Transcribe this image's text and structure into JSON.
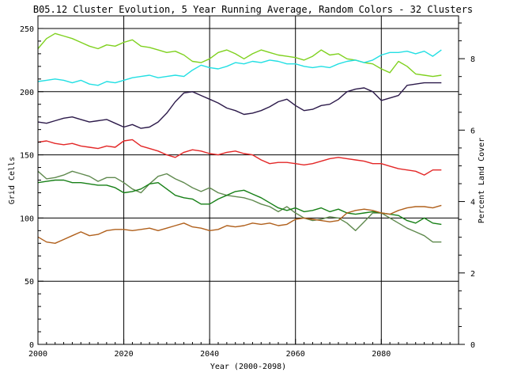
{
  "chart_data": {
    "type": "line",
    "title": "B05.12 Cluster Evolution, 5 Year Running Average, Random Colors - 32 Clusters",
    "xlabel": "Year (2000-2098)",
    "ylabel": "Grid Cells",
    "y2label": "Percent Land Cover",
    "xlim": [
      2000,
      2098
    ],
    "ylim": [
      0,
      260
    ],
    "y2lim": [
      0,
      9.2
    ],
    "xticks": [
      2000,
      2020,
      2040,
      2060,
      2080
    ],
    "xtick_labels": [
      "2000",
      "2020",
      "2040",
      "2060",
      "2080"
    ],
    "yticks": [
      0,
      50,
      100,
      150,
      200,
      250
    ],
    "ytick_labels": [
      "0",
      "50",
      "100",
      "150",
      "200",
      "250"
    ],
    "y2ticks": [
      0,
      2,
      4,
      6,
      8
    ],
    "y2tick_labels": [
      "0",
      "2",
      "4",
      "6",
      "8"
    ],
    "grid": true,
    "series": [
      {
        "color": "#7fd11f",
        "x": [
          2000,
          2002,
          2004,
          2006,
          2008,
          2010,
          2012,
          2014,
          2016,
          2018,
          2020,
          2022,
          2024,
          2026,
          2028,
          2030,
          2032,
          2034,
          2036,
          2038,
          2040,
          2042,
          2044,
          2046,
          2048,
          2050,
          2052,
          2054,
          2056,
          2058,
          2060,
          2062,
          2064,
          2066,
          2068,
          2070,
          2072,
          2074,
          2076,
          2078,
          2080,
          2082,
          2084,
          2086,
          2088,
          2090,
          2092,
          2094
        ],
        "y": [
          234,
          242,
          246,
          244,
          242,
          239,
          236,
          234,
          237,
          236,
          239,
          241,
          236,
          235,
          233,
          231,
          232,
          229,
          224,
          223,
          226,
          231,
          233,
          230,
          226,
          230,
          233,
          231,
          229,
          228,
          227,
          225,
          228,
          233,
          229,
          230,
          226,
          225,
          223,
          222,
          218,
          215,
          224,
          220,
          214,
          213,
          212,
          213
        ]
      },
      {
        "color": "#22dfe3",
        "x": [
          2000,
          2002,
          2004,
          2006,
          2008,
          2010,
          2012,
          2014,
          2016,
          2018,
          2020,
          2022,
          2024,
          2026,
          2028,
          2030,
          2032,
          2034,
          2036,
          2038,
          2040,
          2042,
          2044,
          2046,
          2048,
          2050,
          2052,
          2054,
          2056,
          2058,
          2060,
          2062,
          2064,
          2066,
          2068,
          2070,
          2072,
          2074,
          2076,
          2078,
          2080,
          2082,
          2084,
          2086,
          2088,
          2090,
          2092,
          2094
        ],
        "y": [
          208,
          209,
          210,
          209,
          207,
          209,
          206,
          205,
          208,
          207,
          209,
          211,
          212,
          213,
          211,
          212,
          213,
          212,
          217,
          221,
          219,
          218,
          220,
          223,
          222,
          224,
          223,
          225,
          224,
          222,
          222,
          220,
          219,
          220,
          219,
          222,
          224,
          225,
          223,
          225,
          229,
          231,
          231,
          232,
          230,
          232,
          228,
          233
        ]
      },
      {
        "color": "#2c1a4a",
        "x": [
          2000,
          2002,
          2004,
          2006,
          2008,
          2010,
          2012,
          2014,
          2016,
          2018,
          2020,
          2022,
          2024,
          2026,
          2028,
          2030,
          2032,
          2034,
          2036,
          2038,
          2040,
          2042,
          2044,
          2046,
          2048,
          2050,
          2052,
          2054,
          2056,
          2058,
          2060,
          2062,
          2064,
          2066,
          2068,
          2070,
          2072,
          2074,
          2076,
          2078,
          2080,
          2082,
          2084,
          2086,
          2088,
          2090,
          2092,
          2094
        ],
        "y": [
          176,
          175,
          177,
          179,
          180,
          178,
          176,
          177,
          178,
          175,
          172,
          174,
          171,
          172,
          176,
          183,
          192,
          199,
          200,
          197,
          194,
          191,
          187,
          185,
          182,
          183,
          185,
          188,
          192,
          194,
          189,
          185,
          186,
          189,
          190,
          194,
          200,
          202,
          203,
          200,
          193,
          195,
          197,
          205,
          206,
          207,
          207,
          207
        ]
      },
      {
        "color": "#e32727",
        "x": [
          2000,
          2002,
          2004,
          2006,
          2008,
          2010,
          2012,
          2014,
          2016,
          2018,
          2020,
          2022,
          2024,
          2026,
          2028,
          2030,
          2032,
          2034,
          2036,
          2038,
          2040,
          2042,
          2044,
          2046,
          2048,
          2050,
          2052,
          2054,
          2056,
          2058,
          2060,
          2062,
          2064,
          2066,
          2068,
          2070,
          2072,
          2074,
          2076,
          2078,
          2080,
          2082,
          2084,
          2086,
          2088,
          2090,
          2092,
          2094
        ],
        "y": [
          160,
          161,
          159,
          158,
          159,
          157,
          156,
          155,
          157,
          156,
          161,
          162,
          157,
          155,
          153,
          150,
          148,
          152,
          154,
          153,
          151,
          150,
          152,
          153,
          151,
          150,
          146,
          143,
          144,
          144,
          143,
          142,
          143,
          145,
          147,
          148,
          147,
          146,
          145,
          143,
          143,
          141,
          139,
          138,
          137,
          134,
          138,
          138
        ]
      },
      {
        "color": "#608a4f",
        "x": [
          2000,
          2002,
          2004,
          2006,
          2008,
          2010,
          2012,
          2014,
          2016,
          2018,
          2020,
          2022,
          2024,
          2026,
          2028,
          2030,
          2032,
          2034,
          2036,
          2038,
          2040,
          2042,
          2044,
          2046,
          2048,
          2050,
          2052,
          2054,
          2056,
          2058,
          2060,
          2062,
          2064,
          2066,
          2068,
          2070,
          2072,
          2074,
          2076,
          2078,
          2080,
          2082,
          2084,
          2086,
          2088,
          2090,
          2092,
          2094
        ],
        "y": [
          137,
          131,
          132,
          134,
          137,
          135,
          133,
          129,
          132,
          132,
          128,
          123,
          120,
          127,
          133,
          135,
          131,
          128,
          124,
          121,
          124,
          120,
          118,
          117,
          116,
          114,
          111,
          109,
          105,
          109,
          104,
          100,
          98,
          99,
          101,
          100,
          96,
          90,
          97,
          104,
          104,
          100,
          96,
          92,
          89,
          86,
          81,
          81
        ]
      },
      {
        "color": "#178017",
        "x": [
          2000,
          2002,
          2004,
          2006,
          2008,
          2010,
          2012,
          2014,
          2016,
          2018,
          2020,
          2022,
          2024,
          2026,
          2028,
          2030,
          2032,
          2034,
          2036,
          2038,
          2040,
          2042,
          2044,
          2046,
          2048,
          2050,
          2052,
          2054,
          2056,
          2058,
          2060,
          2062,
          2064,
          2066,
          2068,
          2070,
          2072,
          2074,
          2076,
          2078,
          2080,
          2082,
          2084,
          2086,
          2088,
          2090,
          2092,
          2094
        ],
        "y": [
          128,
          129,
          130,
          130,
          128,
          128,
          127,
          126,
          126,
          124,
          120,
          121,
          123,
          127,
          128,
          123,
          118,
          116,
          115,
          111,
          111,
          115,
          118,
          121,
          122,
          119,
          116,
          112,
          108,
          106,
          108,
          105,
          106,
          108,
          105,
          107,
          104,
          103,
          104,
          105,
          104,
          103,
          102,
          98,
          96,
          100,
          96,
          95
        ]
      },
      {
        "color": "#b0601c",
        "x": [
          2000,
          2002,
          2004,
          2006,
          2008,
          2010,
          2012,
          2014,
          2016,
          2018,
          2020,
          2022,
          2024,
          2026,
          2028,
          2030,
          2032,
          2034,
          2036,
          2038,
          2040,
          2042,
          2044,
          2046,
          2048,
          2050,
          2052,
          2054,
          2056,
          2058,
          2060,
          2062,
          2064,
          2066,
          2068,
          2070,
          2072,
          2074,
          2076,
          2078,
          2080,
          2082,
          2084,
          2086,
          2088,
          2090,
          2092,
          2094
        ],
        "y": [
          85,
          81,
          80,
          83,
          86,
          89,
          86,
          87,
          90,
          91,
          91,
          90,
          91,
          92,
          90,
          92,
          94,
          96,
          93,
          92,
          90,
          91,
          94,
          93,
          94,
          96,
          95,
          96,
          94,
          95,
          99,
          100,
          99,
          98,
          97,
          98,
          104,
          106,
          107,
          106,
          104,
          103,
          106,
          108,
          109,
          109,
          108,
          110
        ]
      }
    ]
  }
}
